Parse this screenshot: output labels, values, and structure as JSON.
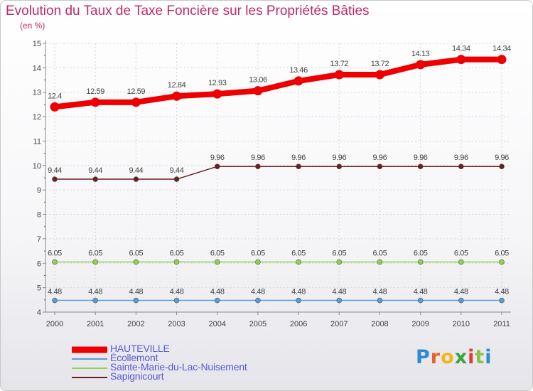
{
  "chart_data": {
    "type": "line",
    "title": "Evolution du Taux de Taxe Foncière sur les Propriétés Bâties",
    "subtitle": "(en %)",
    "x": [
      "2000",
      "2001",
      "2002",
      "2003",
      "2004",
      "2005",
      "2006",
      "2007",
      "2008",
      "2009",
      "2010",
      "2011"
    ],
    "ylim": [
      4,
      15
    ],
    "yticks": [
      "4",
      "5",
      "6",
      "7",
      "8",
      "9",
      "10",
      "11",
      "12",
      "13",
      "14",
      "15"
    ],
    "series": [
      {
        "name": "HAUTEVILLE",
        "color": "#ee0000",
        "values": [
          12.4,
          12.59,
          12.59,
          12.84,
          12.93,
          13.06,
          13.46,
          13.72,
          13.72,
          14.13,
          14.34,
          14.34
        ],
        "labels": [
          "12.4",
          "12.59",
          "12.59",
          "12.84",
          "12.93",
          "13.06",
          "13.46",
          "13.72",
          "13.72",
          "14.13",
          "14.34",
          "14.34"
        ]
      },
      {
        "name": "Écollemont",
        "color": "#5b9bd5",
        "values": [
          4.48,
          4.48,
          4.48,
          4.48,
          4.48,
          4.48,
          4.48,
          4.48,
          4.48,
          4.48,
          4.48,
          4.48
        ],
        "labels": [
          "4.48",
          "4.48",
          "4.48",
          "4.48",
          "4.48",
          "4.48",
          "4.48",
          "4.48",
          "4.48",
          "4.48",
          "4.48",
          "4.48"
        ]
      },
      {
        "name": "Sainte-Marie-du-Lac-Nuisement",
        "color": "#8fd14f",
        "values": [
          6.05,
          6.05,
          6.05,
          6.05,
          6.05,
          6.05,
          6.05,
          6.05,
          6.05,
          6.05,
          6.05,
          6.05
        ],
        "labels": [
          "6.05",
          "6.05",
          "6.05",
          "6.05",
          "6.05",
          "6.05",
          "6.05",
          "6.05",
          "6.05",
          "6.05",
          "6.05",
          "6.05"
        ]
      },
      {
        "name": "Sapignicourt",
        "color": "#6b1f1f",
        "values": [
          9.44,
          9.44,
          9.44,
          9.44,
          9.96,
          9.96,
          9.96,
          9.96,
          9.96,
          9.96,
          9.96,
          9.96
        ],
        "labels": [
          "9.44",
          "9.44",
          "9.44",
          "9.44",
          "9.96",
          "9.96",
          "9.96",
          "9.96",
          "9.96",
          "9.96",
          "9.96",
          "9.96"
        ]
      }
    ]
  },
  "logo": {
    "letters": [
      "P",
      "r",
      "o",
      "x",
      "i",
      "t",
      "i"
    ]
  }
}
